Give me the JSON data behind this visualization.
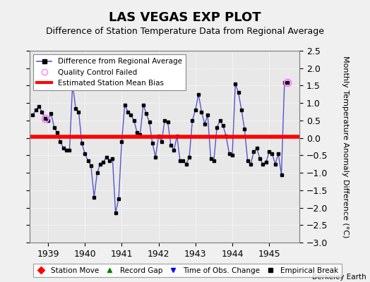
{
  "title": "LAS VEGAS EXP PLOT",
  "subtitle": "Difference of Station Temperature Data from Regional Average",
  "ylabel_right": "Monthly Temperature Anomaly Difference (°C)",
  "credit": "Berkeley Earth",
  "xlim": [
    1938.5,
    1945.83
  ],
  "ylim": [
    -3.0,
    2.5
  ],
  "yticks": [
    -3,
    -2.5,
    -2,
    -1.5,
    -1,
    -0.5,
    0,
    0.5,
    1,
    1.5,
    2,
    2.5
  ],
  "xticks": [
    1939,
    1940,
    1941,
    1942,
    1943,
    1944,
    1945
  ],
  "mean_bias": 0.03,
  "line_color": "#5555cc",
  "marker_color": "#000000",
  "bias_color": "#ff0000",
  "qc_fail_color": "#ff80ff",
  "background_color": "#e8e8e8",
  "times": [
    1938.583,
    1938.667,
    1938.75,
    1938.833,
    1938.917,
    1939.0,
    1939.083,
    1939.167,
    1939.25,
    1939.333,
    1939.417,
    1939.5,
    1939.583,
    1939.667,
    1939.75,
    1939.833,
    1939.917,
    1940.0,
    1940.083,
    1940.167,
    1940.25,
    1940.333,
    1940.417,
    1940.5,
    1940.583,
    1940.667,
    1940.75,
    1940.833,
    1940.917,
    1941.0,
    1941.083,
    1941.167,
    1941.25,
    1941.333,
    1941.417,
    1941.5,
    1941.583,
    1941.667,
    1941.75,
    1941.833,
    1941.917,
    1942.0,
    1942.083,
    1942.167,
    1942.25,
    1942.333,
    1942.417,
    1942.5,
    1942.583,
    1942.667,
    1942.75,
    1942.833,
    1942.917,
    1943.0,
    1943.083,
    1943.167,
    1943.25,
    1943.333,
    1943.417,
    1943.5,
    1943.583,
    1943.667,
    1943.75,
    1943.833,
    1943.917,
    1944.0,
    1944.083,
    1944.167,
    1944.25,
    1944.333,
    1944.417,
    1944.5,
    1944.583,
    1944.667,
    1944.75,
    1944.833,
    1944.917,
    1945.0,
    1945.083,
    1945.167,
    1945.25,
    1945.333,
    1945.417,
    1945.5
  ],
  "values": [
    0.65,
    0.8,
    0.9,
    0.75,
    0.55,
    0.5,
    0.7,
    0.3,
    0.15,
    -0.1,
    -0.3,
    -0.35,
    -0.35,
    1.55,
    0.85,
    0.75,
    -0.15,
    -0.45,
    -0.65,
    -0.8,
    -1.7,
    -1.0,
    -0.75,
    -0.7,
    -0.55,
    -0.65,
    -0.6,
    -2.15,
    -1.75,
    -0.1,
    0.95,
    0.75,
    0.65,
    0.5,
    0.15,
    0.1,
    0.95,
    0.7,
    0.45,
    -0.15,
    -0.55,
    0.05,
    -0.1,
    0.5,
    0.45,
    -0.2,
    -0.35,
    0.05,
    -0.65,
    -0.65,
    -0.75,
    -0.55,
    0.5,
    0.8,
    1.25,
    0.75,
    0.4,
    0.65,
    -0.6,
    -0.65,
    0.3,
    0.5,
    0.35,
    0.05,
    -0.45,
    -0.5,
    1.55,
    1.3,
    0.8,
    0.25,
    -0.65,
    -0.75,
    -0.4,
    -0.3,
    -0.6,
    -0.75,
    -0.7,
    -0.4,
    -0.45,
    -0.75,
    -0.45,
    -1.05,
    1.6,
    1.58
  ],
  "qc_fail_indices": [
    4,
    83
  ],
  "title_fontsize": 13,
  "subtitle_fontsize": 9,
  "tick_fontsize": 9,
  "label_fontsize": 8
}
